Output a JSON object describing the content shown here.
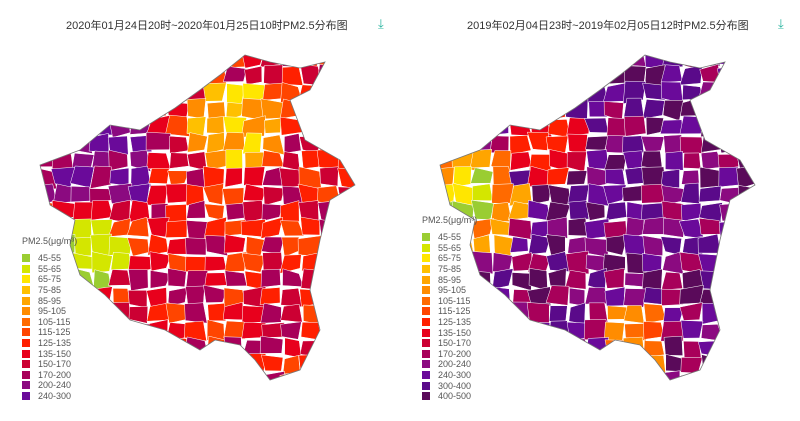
{
  "maps": [
    {
      "title": "2020年01月24日20时~2020年01月25日10时PM2.5分布图",
      "download_icon": "download-icon",
      "legend_title": "PM2.5(μg/m³)",
      "legend": [
        {
          "label": "45-55",
          "color": "#9acd32"
        },
        {
          "label": "55-65",
          "color": "#d4e600"
        },
        {
          "label": "65-75",
          "color": "#ffe600"
        },
        {
          "label": "75-85",
          "color": "#ffc000"
        },
        {
          "label": "85-95",
          "color": "#ffa500"
        },
        {
          "label": "95-105",
          "color": "#ff8c00"
        },
        {
          "label": "105-115",
          "color": "#ff6a00"
        },
        {
          "label": "115-125",
          "color": "#ff4500"
        },
        {
          "label": "125-135",
          "color": "#ff2000"
        },
        {
          "label": "135-150",
          "color": "#e8001c"
        },
        {
          "label": "150-170",
          "color": "#cc0033"
        },
        {
          "label": "170-200",
          "color": "#a8005a"
        },
        {
          "label": "200-240",
          "color": "#8b0a80"
        },
        {
          "label": "240-300",
          "color": "#6a0a9a"
        }
      ]
    },
    {
      "title": "2019年02月04日23时~2019年02月05日12时PM2.5分布图",
      "download_icon": "download-icon",
      "legend_title": "PM2.5(μg/m³)",
      "legend": [
        {
          "label": "45-55",
          "color": "#9acd32"
        },
        {
          "label": "55-65",
          "color": "#d4e600"
        },
        {
          "label": "65-75",
          "color": "#ffe600"
        },
        {
          "label": "75-85",
          "color": "#ffc000"
        },
        {
          "label": "85-95",
          "color": "#ffa500"
        },
        {
          "label": "95-105",
          "color": "#ff8c00"
        },
        {
          "label": "105-115",
          "color": "#ff6a00"
        },
        {
          "label": "115-125",
          "color": "#ff4500"
        },
        {
          "label": "125-135",
          "color": "#ff2000"
        },
        {
          "label": "135-150",
          "color": "#e8001c"
        },
        {
          "label": "150-170",
          "color": "#cc0033"
        },
        {
          "label": "170-200",
          "color": "#a8005a"
        },
        {
          "label": "200-240",
          "color": "#8b0a80"
        },
        {
          "label": "240-300",
          "color": "#6a0a9a"
        },
        {
          "label": "300-400",
          "color": "#5a0a8a"
        },
        {
          "label": "400-500",
          "color": "#5a0a5a"
        }
      ]
    }
  ]
}
